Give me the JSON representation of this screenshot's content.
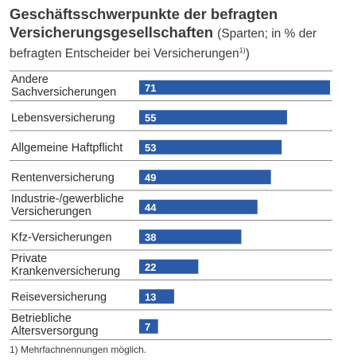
{
  "title": {
    "main": "Geschäftsschwerpunkte der befragten Versicherungsgesellschaften",
    "subtitle_part1": "(Sparten; in % der",
    "subtitle_part2": "befragten Entscheider bei Versicherungen",
    "footnote_ref": "1)",
    "subtitle_close": ")"
  },
  "footnote": "1)  Mehrfachnennungen möglich.",
  "colors": {
    "bar": "#2a5ba8",
    "rule": "#8a8a8a",
    "label_text": "#ffffff"
  },
  "chart_data": {
    "type": "bar",
    "orientation": "horizontal",
    "categories": [
      [
        "Andere",
        "Sachversicherungen"
      ],
      [
        "Lebensversicherung"
      ],
      [
        "Allgemeine Haftpflicht"
      ],
      [
        "Rentenversicherung"
      ],
      [
        "Industrie-/gewerbliche",
        "Versicherungen"
      ],
      [
        "Kfz-Versicherungen"
      ],
      [
        "Private",
        "Krankenversicherung"
      ],
      [
        "Reiseversicherung"
      ],
      [
        "Betriebliche",
        "Altersversorgung"
      ]
    ],
    "values": [
      71,
      55,
      53,
      49,
      44,
      38,
      22,
      13,
      7
    ],
    "xlim": [
      0,
      71
    ],
    "unit": "%",
    "grid": false,
    "data_labels": true
  }
}
